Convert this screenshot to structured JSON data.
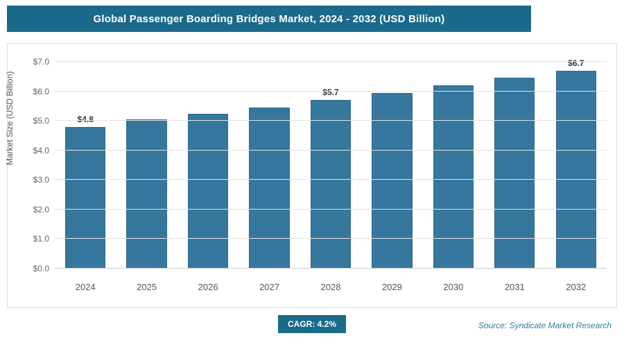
{
  "header": {
    "title": "Global Passenger Boarding Bridges Market, 2024 - 2032 (USD Billion)"
  },
  "chart_data": {
    "type": "bar",
    "categories": [
      "2024",
      "2025",
      "2026",
      "2027",
      "2028",
      "2029",
      "2030",
      "2031",
      "2032"
    ],
    "values": [
      4.8,
      5.05,
      5.25,
      5.45,
      5.7,
      5.95,
      6.2,
      6.45,
      6.7
    ],
    "data_labels": [
      "$4.8",
      null,
      null,
      null,
      "$5.7",
      null,
      null,
      null,
      "$6.7"
    ],
    "title": "Global Passenger Boarding Bridges Market, 2024 - 2032 (USD Billion)",
    "xlabel": "",
    "ylabel": "Market Size (USD Billion)",
    "ylim": [
      0,
      7
    ],
    "ytick_step": 1,
    "ytick_labels": [
      "$0.0",
      "$1.0",
      "$2.0",
      "$3.0",
      "$4.0",
      "$5.0",
      "$6.0",
      "$7.0"
    ],
    "grid": true,
    "legend": "none",
    "bar_color": "#36779e"
  },
  "footer": {
    "cagr_label": "CAGR: 4.2%",
    "source": "Source: Syndicate Market Research"
  },
  "colors": {
    "banner_bg": "#1b6a8c",
    "bar": "#36779e",
    "gridline": "#e3e3e3",
    "axis_text": "#666666"
  }
}
